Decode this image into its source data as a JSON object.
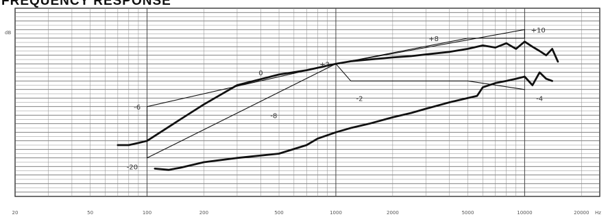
{
  "chart_data": {
    "type": "line",
    "title": "FREQUENCY RESPONSE",
    "ylabel": "dB",
    "xlabel_unit": "Hz",
    "x_scale": "log",
    "xlim": [
      20,
      25000
    ],
    "ylim": [
      -29,
      15
    ],
    "grid": true,
    "x_tick_labels": [
      {
        "value": 20,
        "label": "20"
      },
      {
        "value": 50,
        "label": "50"
      },
      {
        "value": 100,
        "label": "100"
      },
      {
        "value": 200,
        "label": "200"
      },
      {
        "value": 500,
        "label": "500"
      },
      {
        "value": 1000,
        "label": "1000"
      },
      {
        "value": 2000,
        "label": "2000"
      },
      {
        "value": 5000,
        "label": "5000"
      },
      {
        "value": 10000,
        "label": "10000"
      },
      {
        "value": 20000,
        "label": "20000"
      }
    ],
    "annotations": [
      {
        "text": "+10",
        "x": 10800,
        "y": 10
      },
      {
        "text": "+8",
        "x": 3100,
        "y": 8
      },
      {
        "text": "+2",
        "x": 820,
        "y": 2
      },
      {
        "text": "0",
        "x": 390,
        "y": 0
      },
      {
        "text": "-2",
        "x": 1280,
        "y": -6
      },
      {
        "text": "-4",
        "x": 11500,
        "y": -6
      },
      {
        "text": "-6",
        "x": 85,
        "y": -8
      },
      {
        "text": "-8",
        "x": 450,
        "y": -10
      },
      {
        "text": "-20",
        "x": 78,
        "y": -22
      }
    ],
    "series": [
      {
        "style": "thick",
        "x": [
          70,
          80,
          90,
          100,
          150,
          200,
          300,
          500,
          700,
          1000,
          1200,
          1500,
          2000,
          2500,
          3000,
          4000,
          5000,
          6000,
          7000,
          8000,
          9000,
          10000,
          11000,
          12000,
          13000,
          14000,
          15000
        ],
        "y": [
          -17,
          -17,
          -16.5,
          -16,
          -11,
          -7.5,
          -3,
          -0.5,
          0.5,
          2,
          2.6,
          3,
          3.5,
          3.8,
          4.2,
          4.8,
          5.5,
          6.3,
          5.8,
          6.8,
          5.5,
          7.2,
          6,
          5,
          4,
          5.5,
          2.5
        ]
      },
      {
        "style": "thick",
        "x": [
          110,
          130,
          150,
          200,
          300,
          500,
          700,
          800,
          1000,
          1200,
          1500,
          2000,
          2500,
          3000,
          4000,
          5000,
          5600,
          6000,
          7000,
          8000,
          9000,
          10000,
          11000,
          12000,
          13000,
          14000
        ],
        "y": [
          -22.5,
          -22.8,
          -22.3,
          -21,
          -20,
          -19,
          -17,
          -15.5,
          -14,
          -13,
          -12,
          -10.5,
          -9.5,
          -8.5,
          -7,
          -6,
          -5.5,
          -3.5,
          -2.5,
          -2,
          -1.5,
          -1,
          -3,
          0,
          -1.5,
          -2
        ]
      },
      {
        "style": "thin",
        "x": [
          100,
          100,
          1000,
          5000,
          10000,
          10000
        ],
        "y": [
          -20,
          -8,
          2,
          8,
          8,
          10
        ]
      },
      {
        "style": "thin",
        "x": [
          100,
          1000,
          10000
        ],
        "y": [
          -20,
          2,
          10
        ]
      },
      {
        "style": "thin",
        "x": [
          1000,
          1200,
          5000,
          10000
        ],
        "y": [
          2,
          -2,
          -2,
          -4
        ]
      }
    ]
  }
}
